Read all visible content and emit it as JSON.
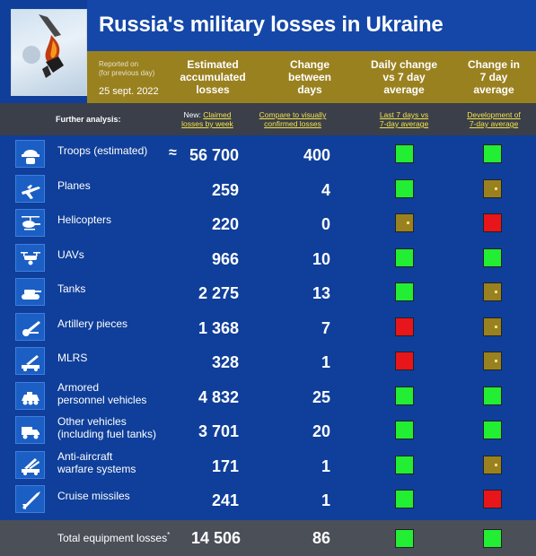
{
  "header": {
    "title": "Russia's military losses in Ukraine",
    "reported_on": "Reported on",
    "for_previous_day": "(for previous day)",
    "date": "25 sept. 2022"
  },
  "columns": {
    "estimated": [
      "Estimated",
      "accumulated",
      "losses"
    ],
    "change": [
      "Change",
      "between",
      "days"
    ],
    "daily": [
      "Daily change",
      "vs 7 day",
      "average"
    ],
    "change7": [
      "Change in",
      "7 day",
      "average"
    ]
  },
  "further": {
    "label": "Further analysis:",
    "new_prefix": "New:",
    "link1a": "Claimed",
    "link1b": "losses by week",
    "link2a": "Compare to visually",
    "link2b": "confirmed losses",
    "link3a": "Last 7 days vs",
    "link3b": "7-day average",
    "link4a": "Development of",
    "link4b": "7-day average"
  },
  "colors": {
    "green": "#22ee33",
    "red": "#e8151a",
    "olive": "#9a8120"
  },
  "rows": [
    {
      "label": "Troops (estimated)",
      "approx": "≈",
      "value": "56 700",
      "change": "400",
      "daily": "green",
      "avg": "green",
      "icon": "soldier-helmet-icon"
    },
    {
      "label": "Planes",
      "value": "259",
      "change": "4",
      "daily": "green",
      "avg": "olive",
      "icon": "plane-icon"
    },
    {
      "label": "Helicopters",
      "value": "220",
      "change": "0",
      "daily": "olive",
      "avg": "red",
      "icon": "helicopter-icon"
    },
    {
      "label": "UAVs",
      "value": "966",
      "change": "10",
      "daily": "green",
      "avg": "green",
      "icon": "drone-icon"
    },
    {
      "label": "Tanks",
      "value": "2 275",
      "change": "13",
      "daily": "green",
      "avg": "olive",
      "icon": "tank-icon"
    },
    {
      "label": "Artillery pieces",
      "value": "1 368",
      "change": "7",
      "daily": "red",
      "avg": "olive",
      "icon": "artillery-icon"
    },
    {
      "label": "MLRS",
      "value": "328",
      "change": "1",
      "daily": "red",
      "avg": "olive",
      "icon": "mlrs-icon"
    },
    {
      "label": "Armored",
      "label2": "personnel vehicles",
      "value": "4 832",
      "change": "25",
      "daily": "green",
      "avg": "green",
      "icon": "apc-icon"
    },
    {
      "label": "Other vehicles",
      "label2": "(including fuel tanks)",
      "value": "3 701",
      "change": "20",
      "daily": "green",
      "avg": "green",
      "icon": "truck-icon"
    },
    {
      "label": "Anti-aircraft",
      "label2": "warfare systems",
      "value": "171",
      "change": "1",
      "daily": "green",
      "avg": "olive",
      "icon": "anti-aircraft-icon"
    },
    {
      "label": "Cruise missiles",
      "value": "241",
      "change": "1",
      "daily": "green",
      "avg": "red",
      "icon": "missile-icon"
    }
  ],
  "total": {
    "label": "Total equipment losses",
    "mark": "*",
    "value": "14 506",
    "change": "86",
    "daily": "green",
    "avg": "green"
  }
}
